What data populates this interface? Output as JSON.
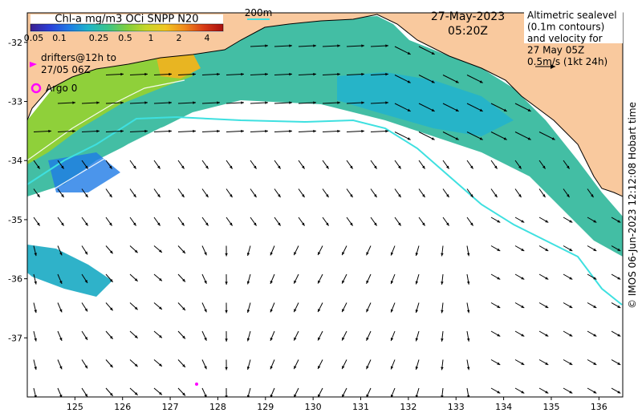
{
  "header": {
    "colorbar_title": "Chl-a mg/m3 OCi SNPP N20",
    "colorbar_ticks": [
      "0.05",
      "0.1",
      "0.25",
      "0.5",
      "1",
      "2",
      "4"
    ],
    "colorbar_colors": [
      "#3b1f8f",
      "#2a3fd8",
      "#1e7be6",
      "#1fb4c9",
      "#39c48a",
      "#7fcf3e",
      "#c6d62a",
      "#f1c623",
      "#f08a1c",
      "#d83a16",
      "#a80f0f"
    ],
    "isobath_label": "200m",
    "date": "27-May-2023",
    "time": "05:20Z"
  },
  "legend": {
    "altimetry_lines": [
      "Altimetric sealevel",
      "(0.1m contours)",
      "and velocity for",
      "27 May 05Z",
      "0.5m/s (1kt 24h)"
    ],
    "drifters_lines": [
      "drifters@12h to",
      "27/05 06Z"
    ],
    "argo_label": "Argo 0",
    "drifter_color": "#ff00ff",
    "argo_color": "#ff00ff"
  },
  "axes": {
    "x_ticks": [
      "125",
      "126",
      "127",
      "128",
      "129",
      "130",
      "131",
      "132",
      "133",
      "134",
      "135",
      "136"
    ],
    "y_ticks": [
      "-32",
      "-33",
      "-34",
      "-35",
      "-36",
      "-37"
    ],
    "lon_range": [
      124,
      136.5
    ],
    "lat_range": [
      -38,
      -31.5
    ]
  },
  "credit": "© IMOS 06-Jun-2023 12:12:08 Hobart time",
  "colors": {
    "land": "#f9c99e",
    "isobath": "#3ee0e0",
    "arrow": "#000000",
    "contour": "#ffffff"
  }
}
